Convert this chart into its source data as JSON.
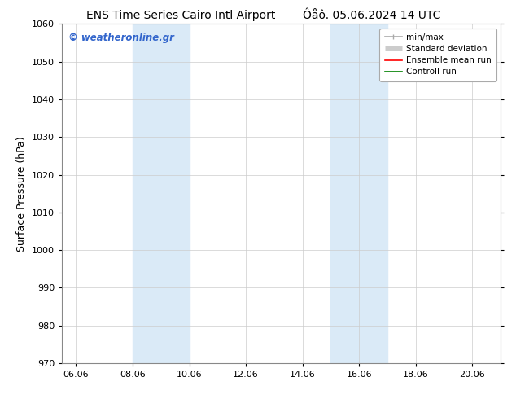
{
  "title_left": "ENS Time Series Cairo Intl Airport",
  "title_right": "Ôåô. 05.06.2024 14 UTC",
  "ylabel": "Surface Pressure (hPa)",
  "ylim": [
    970,
    1060
  ],
  "yticks": [
    970,
    980,
    990,
    1000,
    1010,
    1020,
    1030,
    1040,
    1050,
    1060
  ],
  "xlim_start": 5.5,
  "xlim_end": 21.0,
  "xtick_labels": [
    "06.06",
    "08.06",
    "10.06",
    "12.06",
    "14.06",
    "16.06",
    "18.06",
    "20.06"
  ],
  "xtick_positions": [
    6.0,
    8.0,
    10.0,
    12.0,
    14.0,
    16.0,
    18.0,
    20.0
  ],
  "shaded_bands": [
    {
      "x_start": 8.0,
      "x_end": 10.0,
      "color": "#daeaf7"
    },
    {
      "x_start": 15.0,
      "x_end": 17.0,
      "color": "#daeaf7"
    }
  ],
  "watermark_text": "© weatheronline.gr",
  "watermark_color": "#3366cc",
  "legend_items": [
    {
      "label": "min/max",
      "color": "#aaaaaa",
      "lw": 1.2
    },
    {
      "label": "Standard deviation",
      "color": "#cccccc",
      "lw": 5
    },
    {
      "label": "Ensemble mean run",
      "color": "#ff0000",
      "lw": 1.2
    },
    {
      "label": "Controll run",
      "color": "#008000",
      "lw": 1.2
    }
  ],
  "background_color": "#ffffff",
  "grid_color": "#cccccc",
  "tick_label_fontsize": 8,
  "axis_label_fontsize": 9,
  "title_fontsize": 10
}
